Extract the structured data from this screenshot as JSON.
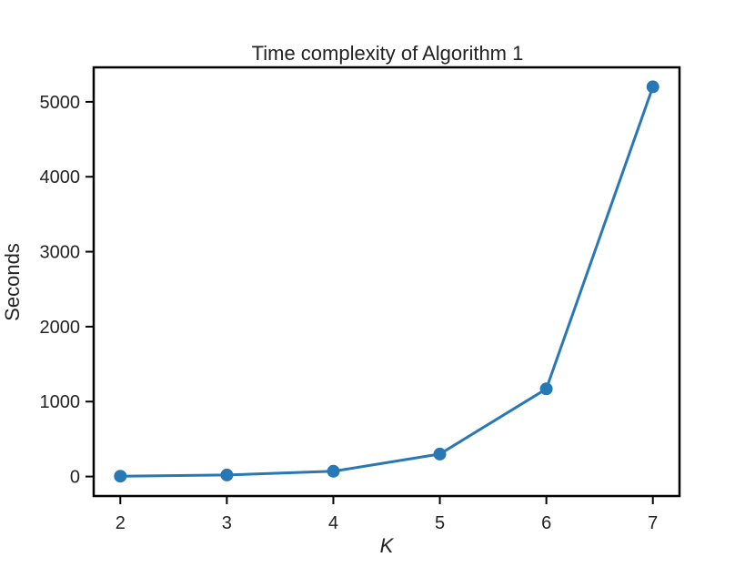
{
  "chart_data": {
    "type": "line",
    "title": "Time complexity of Algorithm 1",
    "xlabel": "K",
    "ylabel": "Seconds",
    "x": [
      2,
      3,
      4,
      5,
      6,
      7
    ],
    "series": [
      {
        "values": [
          5,
          20,
          70,
          300,
          1170,
          5200
        ],
        "color": "#2878b5"
      }
    ],
    "xlim": [
      1.75,
      7.25
    ],
    "ylim": [
      -260,
      5460
    ],
    "xticks": [
      "2",
      "3",
      "4",
      "5",
      "6",
      "7"
    ],
    "yticks": [
      "0",
      "1000",
      "2000",
      "3000",
      "4000",
      "5000"
    ],
    "grid": false,
    "legend": "none"
  }
}
